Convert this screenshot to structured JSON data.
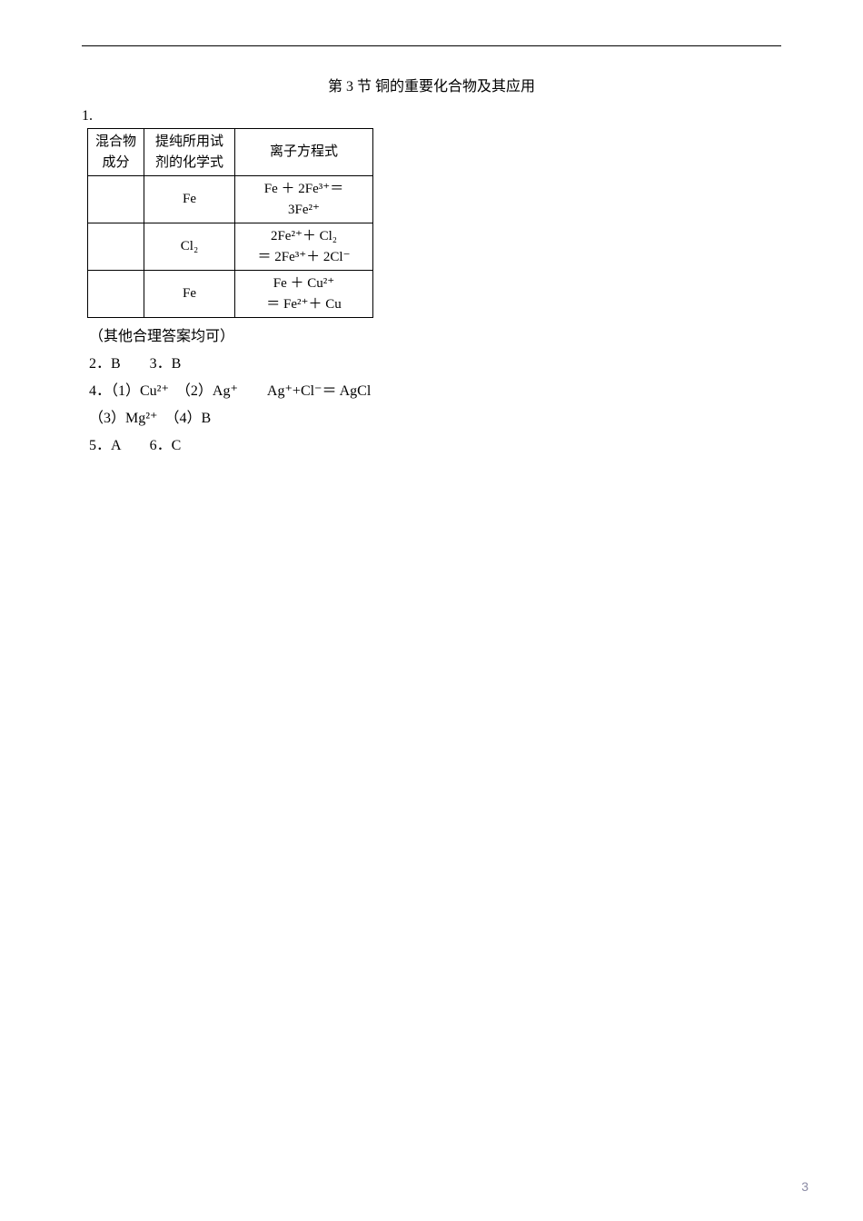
{
  "section_title": "第 3 节  铜的重要化合物及其应用",
  "q1_label": "1.",
  "table": {
    "header": {
      "c1a": "混合物",
      "c1b": "成分",
      "c2a": "提纯所用试",
      "c2b": "剂的化学式",
      "c3": "离子方程式"
    },
    "rows": [
      {
        "reagent": "Fe",
        "eq_line1": "Fe ＋ 2Fe³⁺＝",
        "eq_line2": "3Fe²⁺"
      },
      {
        "reagent": "Cl₂",
        "eq_line1": "2Fe²⁺＋ Cl₂",
        "eq_line2": "＝ 2Fe³⁺＋ 2Cl⁻"
      },
      {
        "reagent": "Fe",
        "eq_line1": "Fe ＋ Cu²⁺",
        "eq_line2": "＝ Fe²⁺＋ Cu"
      }
    ]
  },
  "note": "（其他合理答案均可）",
  "q2q3": "2．B　　3．B",
  "q4_line1": "4．（1）Cu²⁺　（2）Ag⁺　　Ag⁺+Cl⁻＝ AgCl",
  "q4_line2": "（3）Mg²⁺　（4）B",
  "q5q6": "5．A　　6．C",
  "page_number": "3"
}
